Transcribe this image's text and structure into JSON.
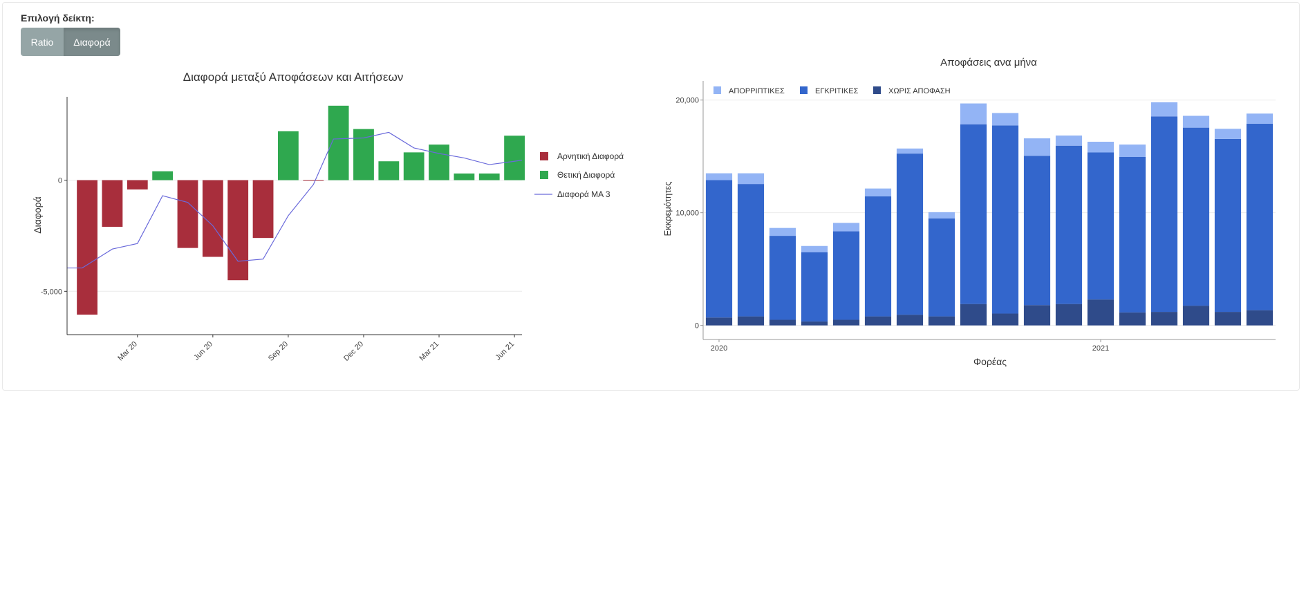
{
  "selector": {
    "label": "Επιλογή δείκτη:",
    "buttons": [
      {
        "label": "Ratio",
        "active": false
      },
      {
        "label": "Διαφορά",
        "active": true
      }
    ]
  },
  "colors": {
    "negative": "#a82e3c",
    "positive": "#2fa84f",
    "ma_line": "#6a6adb",
    "rejected": "#93b4f5",
    "approved": "#3366cc",
    "undecided": "#2f4b8a"
  },
  "chart_data": [
    {
      "type": "bar",
      "title": "Διαφορά μεταξύ Αποφάσεων και Αιτήσεων",
      "ylabel": "Διαφορά",
      "xlabel": "",
      "x_ticks": [
        "Mar 20",
        "Jun 20",
        "Sep 20",
        "Dec 20",
        "Mar 21",
        "Jun 21"
      ],
      "x_tick_months": [
        2,
        5,
        8,
        11,
        14,
        17
      ],
      "x_range": [
        -0.8,
        17.3
      ],
      "y_ticks": [
        0,
        -5000
      ],
      "y_tick_labels": [
        "0",
        "-5,000"
      ],
      "ylim": [
        -6950,
        3750
      ],
      "legend_position": "right",
      "legend": [
        {
          "name": "Αρνητική Διαφορά",
          "kind": "bar",
          "color": "#a82e3c"
        },
        {
          "name": "Θετική Διαφορά",
          "kind": "bar",
          "color": "#2fa84f"
        },
        {
          "name": "Διαφορά MA 3",
          "kind": "line",
          "color": "#6a6adb"
        }
      ],
      "months": [
        0,
        1,
        2,
        3,
        4,
        5,
        6,
        7,
        8,
        9,
        10,
        11,
        12,
        13,
        14,
        15,
        16,
        17
      ],
      "values": [
        -6050,
        -2100,
        -420,
        400,
        -3050,
        -3450,
        -4500,
        -2600,
        2200,
        -30,
        3350,
        2300,
        850,
        1250,
        1600,
        300,
        300,
        2000
      ],
      "ma3": {
        "x": [
          -0.8,
          -0.2,
          1,
          2,
          3,
          4,
          5,
          6,
          7,
          8,
          9,
          9.8,
          11,
          12,
          13,
          14,
          15,
          16,
          17,
          17.3
        ],
        "y": [
          -3950,
          -3950,
          -3100,
          -2850,
          -700,
          -1000,
          -2050,
          -3650,
          -3550,
          -1600,
          -200,
          1850,
          1900,
          2150,
          1450,
          1200,
          1000,
          700,
          850,
          900
        ]
      }
    },
    {
      "type": "bar",
      "stacked": true,
      "title": "Αποφάσεις ανα μήνα",
      "xlabel": "Φορέας",
      "ylabel": "Εκκρεμότητες",
      "x_ticks": [
        "2020",
        "2021"
      ],
      "x_tick_months": [
        0,
        12
      ],
      "x_range": [
        -0.5,
        17.5
      ],
      "y_ticks": [
        0,
        10000,
        20000
      ],
      "y_tick_labels": [
        "0",
        "10,000",
        "20,000"
      ],
      "ylim": [
        -1250,
        21700
      ],
      "legend_position": "top-left",
      "months": [
        0,
        1,
        2,
        3,
        4,
        5,
        6,
        7,
        8,
        9,
        10,
        11,
        12,
        13,
        14,
        15,
        16,
        17
      ],
      "series": [
        {
          "name": "ΧΩΡΙΣ ΑΠΟΦΑΣΗ",
          "color": "#2f4b8a",
          "values": [
            700,
            800,
            500,
            350,
            500,
            800,
            950,
            800,
            1900,
            1050,
            1800,
            1900,
            2300,
            1150,
            1200,
            1750,
            1200,
            1350
          ]
        },
        {
          "name": "ΕΓΚΡΙΤΙΚΕΣ",
          "color": "#3366cc",
          "values": [
            12200,
            11750,
            7450,
            6150,
            7850,
            10650,
            14300,
            8700,
            15950,
            16700,
            13250,
            14050,
            13050,
            13800,
            17350,
            15800,
            15350,
            16550
          ]
        },
        {
          "name": "ΑΠΟΡΡΙΠΤΙΚΕΣ",
          "color": "#93b4f5",
          "values": [
            600,
            950,
            700,
            550,
            750,
            700,
            450,
            550,
            1850,
            1100,
            1550,
            900,
            950,
            1100,
            1250,
            1050,
            900,
            900
          ]
        }
      ],
      "legend": [
        {
          "name": "ΑΠΟΡΡΙΠΤΙΚΕΣ",
          "color": "#93b4f5"
        },
        {
          "name": "ΕΓΚΡΙΤΙΚΕΣ",
          "color": "#3366cc"
        },
        {
          "name": "ΧΩΡΙΣ ΑΠΟΦΑΣΗ",
          "color": "#2f4b8a"
        }
      ]
    }
  ]
}
